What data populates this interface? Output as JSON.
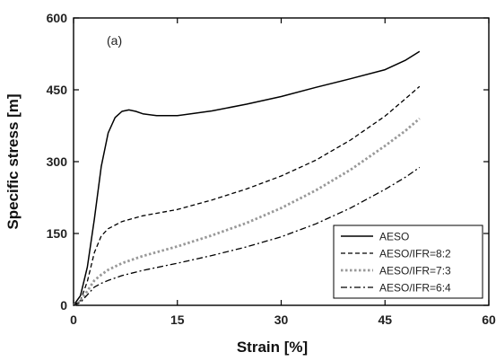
{
  "chart_data": {
    "type": "line",
    "annotation": "(a)",
    "xlabel": "Strain  [%]",
    "ylabel": "Specific stress  [m]",
    "xlim": [
      0,
      60
    ],
    "ylim": [
      0,
      600
    ],
    "xticks": [
      0,
      15,
      30,
      45,
      60
    ],
    "yticks": [
      0,
      150,
      300,
      450,
      600
    ],
    "grid": false,
    "legend_position": "bottom-right",
    "series": [
      {
        "name": "AESO",
        "style": "solid",
        "color": "#000000",
        "x": [
          0,
          1,
          2,
          3,
          4,
          5,
          6,
          7,
          8,
          9,
          10,
          12,
          15,
          20,
          25,
          30,
          35,
          40,
          45,
          48,
          50
        ],
        "y": [
          0,
          20,
          80,
          180,
          290,
          360,
          392,
          405,
          408,
          405,
          400,
          396,
          396,
          406,
          420,
          436,
          455,
          473,
          492,
          512,
          530
        ]
      },
      {
        "name": "AESO/IFR=8:2",
        "style": "dashed",
        "color": "#000000",
        "x": [
          0,
          1,
          2,
          3,
          4,
          5,
          7,
          10,
          15,
          20,
          25,
          30,
          35,
          40,
          45,
          48,
          50
        ],
        "y": [
          0,
          10,
          50,
          110,
          145,
          160,
          175,
          187,
          200,
          220,
          243,
          270,
          303,
          345,
          395,
          432,
          457
        ]
      },
      {
        "name": "AESO/IFR=7:3",
        "style": "dotted",
        "color": "#999999",
        "x": [
          0,
          1,
          2,
          3,
          4,
          5,
          7,
          10,
          15,
          20,
          25,
          30,
          35,
          40,
          45,
          48,
          50
        ],
        "y": [
          0,
          8,
          30,
          52,
          64,
          74,
          88,
          103,
          123,
          146,
          172,
          203,
          240,
          283,
          333,
          365,
          390
        ]
      },
      {
        "name": "AESO/IFR=6:4",
        "style": "dashdot",
        "color": "#000000",
        "x": [
          0,
          1,
          2,
          3,
          4,
          5,
          7,
          10,
          15,
          20,
          25,
          30,
          35,
          40,
          45,
          48,
          50
        ],
        "y": [
          0,
          6,
          22,
          38,
          46,
          52,
          62,
          73,
          88,
          104,
          122,
          143,
          170,
          203,
          242,
          268,
          288
        ]
      }
    ]
  }
}
